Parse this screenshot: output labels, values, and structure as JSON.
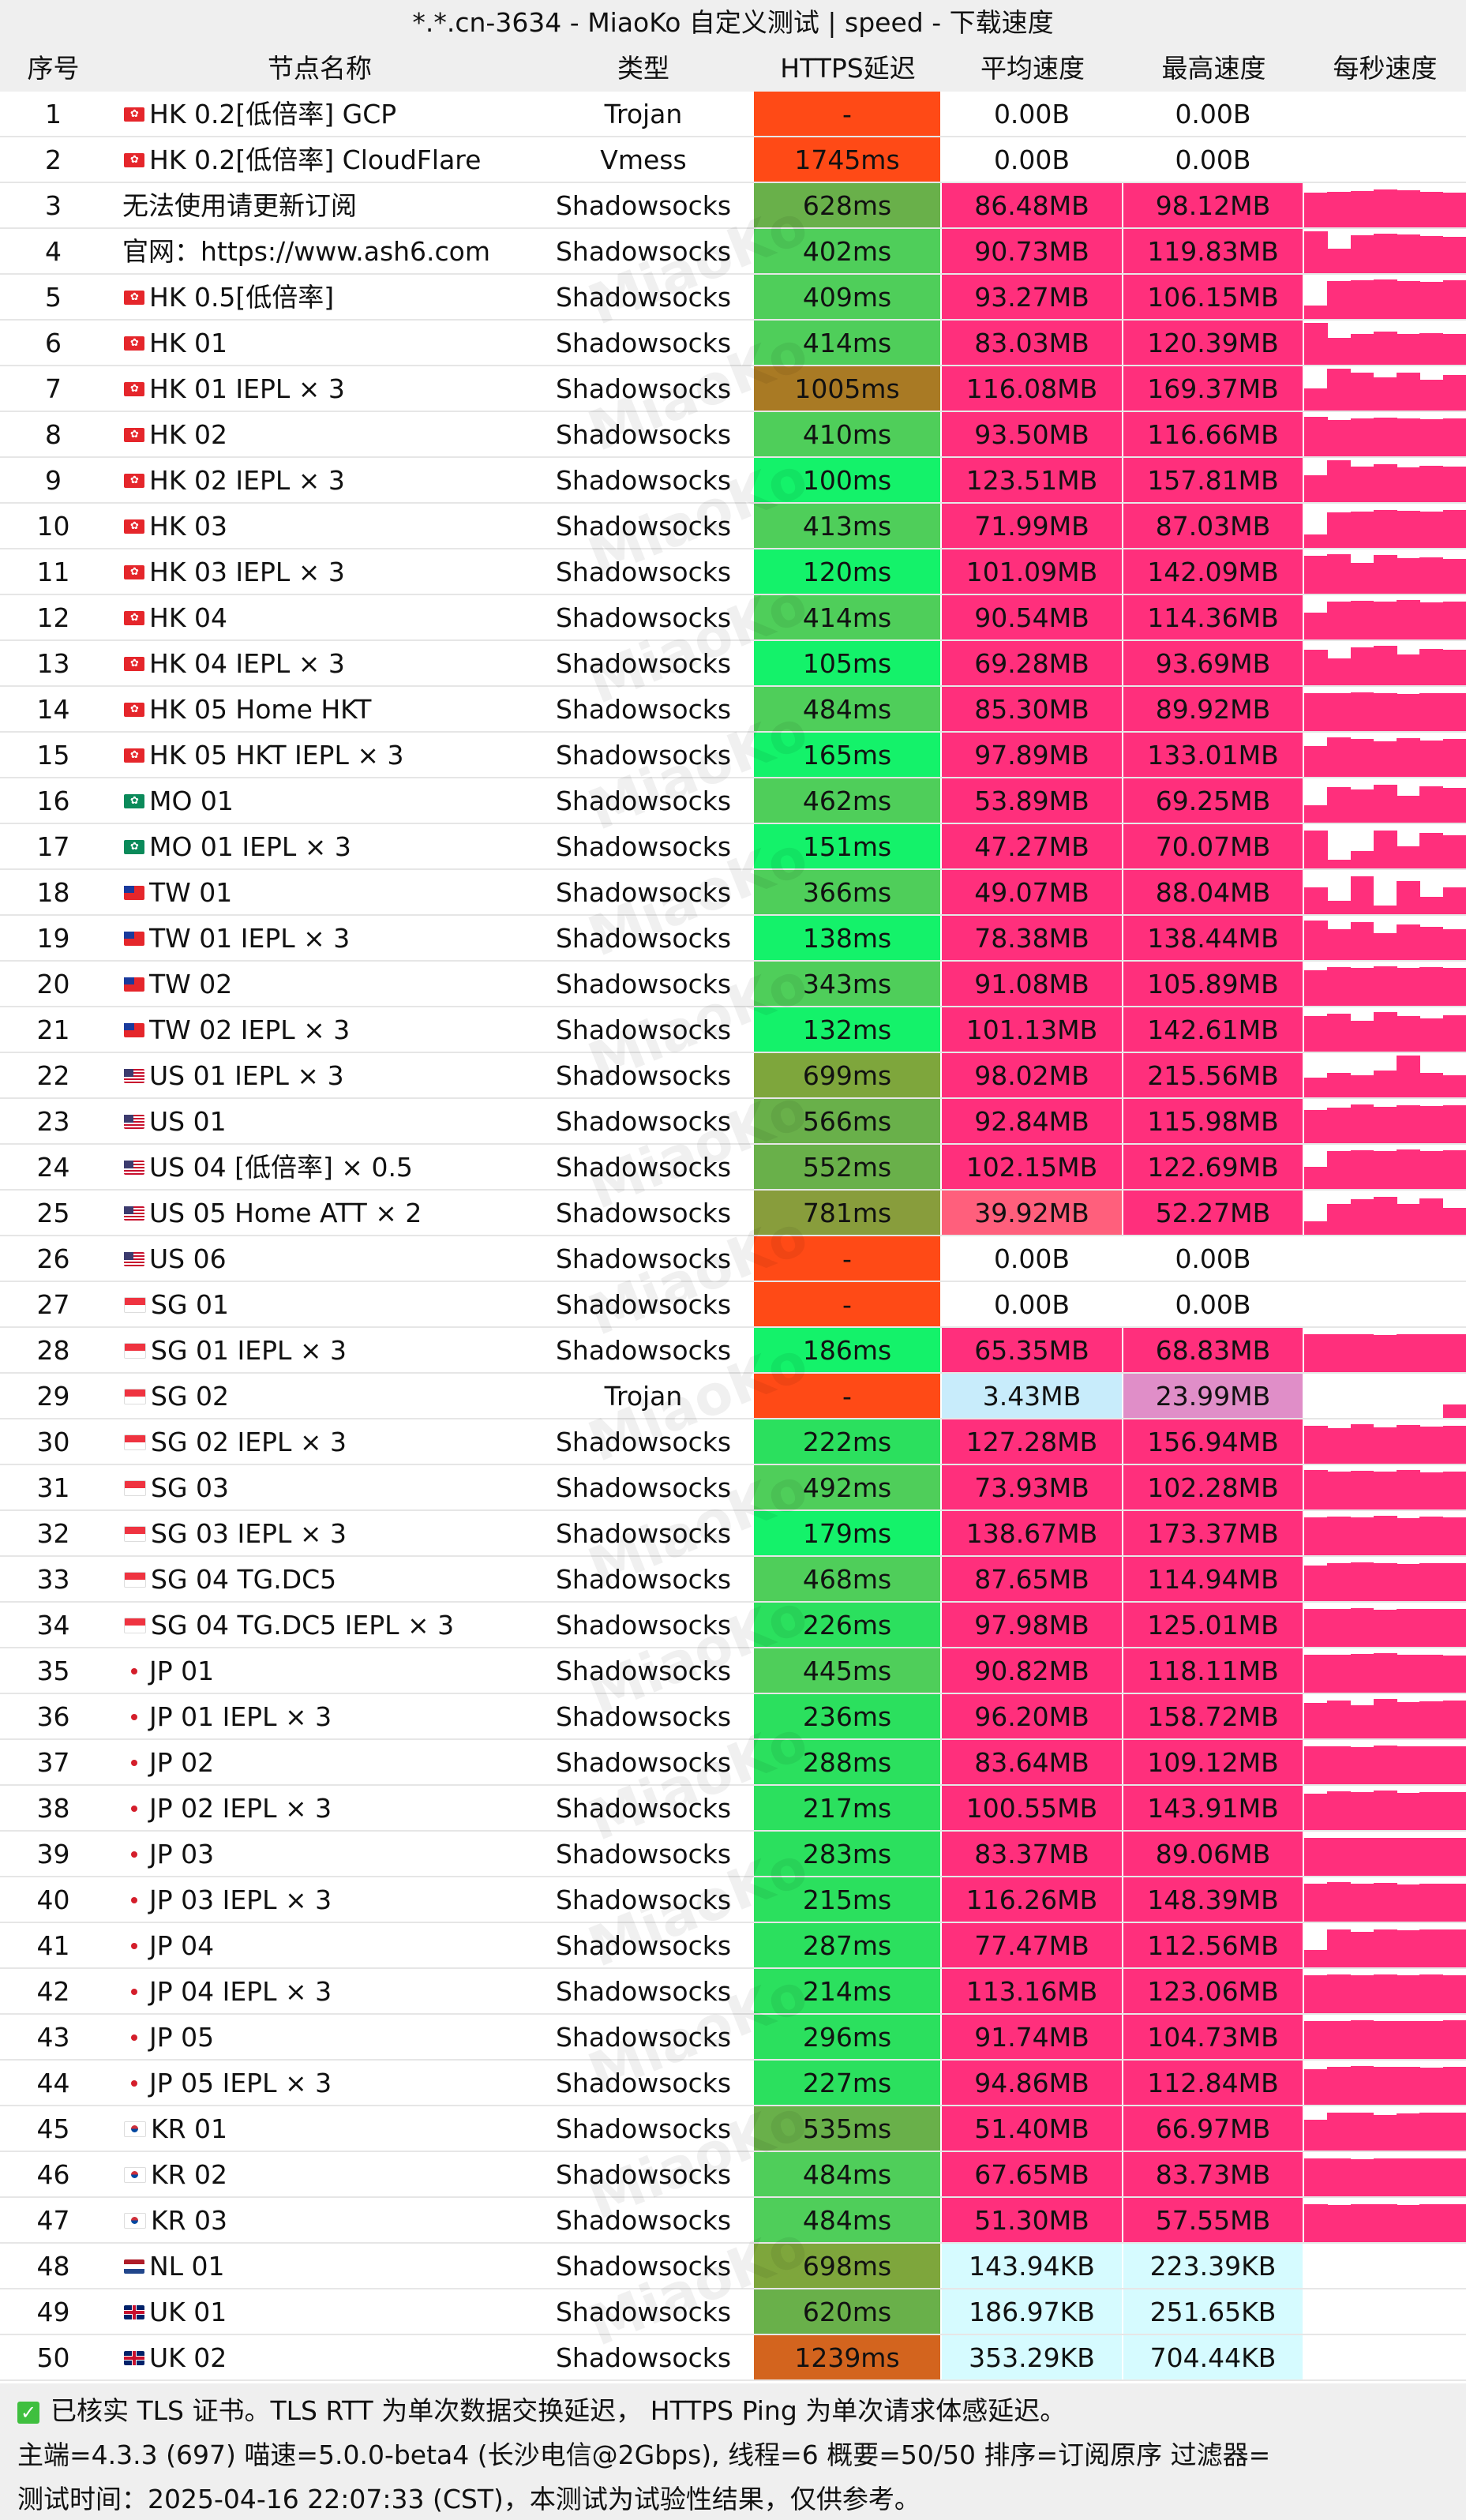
{
  "title": "*.*.cn-3634 - MiaoKo 自定义测试 | speed - 下载速度",
  "watermark": "MiaoKo",
  "columns": [
    "序号",
    "节点名称",
    "类型",
    "HTTPS延迟",
    "平均速度",
    "最高速度",
    "每秒速度"
  ],
  "colors": {
    "speed_high": "#ff2f7c",
    "speed_light_blue": "#c8ecfb",
    "speed_pale_cyan": "#d6fbff",
    "speed_pink_purple": "#e08ec8",
    "speed_salmon": "#ff5f7c",
    "latency_fail": "#ff4a16",
    "latency_none": "#ffffff"
  },
  "rows": [
    {
      "idx": "1",
      "flag": "hk",
      "name": "HK 0.2[低倍率] GCP",
      "type": "Trojan",
      "latency": "-",
      "lat_color": "#ff4a16",
      "avg": "0.00B",
      "max": "0.00B",
      "avg_color": "#ffffff",
      "max_color": "#ffffff",
      "bars": []
    },
    {
      "idx": "2",
      "flag": "hk",
      "name": "HK 0.2[低倍率] CloudFlare",
      "type": "Vmess",
      "latency": "1745ms",
      "lat_color": "#ff4a16",
      "avg": "0.00B",
      "max": "0.00B",
      "avg_color": "#ffffff",
      "max_color": "#ffffff",
      "bars": []
    },
    {
      "idx": "3",
      "flag": "",
      "name": "无法使用请更新订阅",
      "type": "Shadowsocks",
      "latency": "628ms",
      "lat_color": "#69b04a",
      "avg": "86.48MB",
      "max": "98.12MB",
      "avg_color": "#ff2f7c",
      "max_color": "#ff2f7c",
      "bars": [
        0.78,
        0.8,
        0.82,
        0.86,
        0.84,
        0.8,
        0.78
      ]
    },
    {
      "idx": "4",
      "flag": "",
      "name": "官网：https://www.ash6.com",
      "type": "Shadowsocks",
      "latency": "402ms",
      "lat_color": "#4fce5a",
      "avg": "90.73MB",
      "max": "119.83MB",
      "avg_color": "#ff2f7c",
      "max_color": "#ff2f7c",
      "bars": [
        0.95,
        0.55,
        0.85,
        0.9,
        0.88,
        0.84,
        0.82
      ]
    },
    {
      "idx": "5",
      "flag": "hk",
      "name": "HK 0.5[低倍率]",
      "type": "Shadowsocks",
      "latency": "409ms",
      "lat_color": "#4fce5a",
      "avg": "93.27MB",
      "max": "106.15MB",
      "avg_color": "#ff2f7c",
      "max_color": "#ff2f7c",
      "bars": [
        0.3,
        0.85,
        0.88,
        0.9,
        0.86,
        0.84,
        0.88
      ]
    },
    {
      "idx": "6",
      "flag": "hk",
      "name": "HK 01",
      "type": "Shadowsocks",
      "latency": "414ms",
      "lat_color": "#4fce5a",
      "avg": "83.03MB",
      "max": "120.39MB",
      "avg_color": "#ff2f7c",
      "max_color": "#ff2f7c",
      "bars": [
        0.95,
        0.6,
        0.7,
        0.75,
        0.7,
        0.72,
        0.7
      ]
    },
    {
      "idx": "7",
      "flag": "hk",
      "name": "HK 01 IEPL × 3",
      "type": "Shadowsocks",
      "latency": "1005ms",
      "lat_color": "#a97a24",
      "avg": "116.08MB",
      "max": "169.37MB",
      "avg_color": "#ff2f7c",
      "max_color": "#ff2f7c",
      "bars": [
        0.5,
        0.95,
        0.85,
        0.75,
        0.85,
        0.7,
        0.8
      ]
    },
    {
      "idx": "8",
      "flag": "hk",
      "name": "HK 02",
      "type": "Shadowsocks",
      "latency": "410ms",
      "lat_color": "#4fce5a",
      "avg": "93.50MB",
      "max": "116.66MB",
      "avg_color": "#ff2f7c",
      "max_color": "#ff2f7c",
      "bars": [
        0.9,
        0.82,
        0.85,
        0.88,
        0.86,
        0.84,
        0.85
      ]
    },
    {
      "idx": "9",
      "flag": "hk",
      "name": "HK 02 IEPL × 3",
      "type": "Shadowsocks",
      "latency": "100ms",
      "lat_color": "#14f26a",
      "avg": "123.51MB",
      "max": "157.81MB",
      "avg_color": "#ff2f7c",
      "max_color": "#ff2f7c",
      "bars": [
        0.6,
        0.95,
        0.8,
        0.85,
        0.78,
        0.82,
        0.8
      ]
    },
    {
      "idx": "10",
      "flag": "hk",
      "name": "HK 03",
      "type": "Shadowsocks",
      "latency": "413ms",
      "lat_color": "#4fce5a",
      "avg": "71.99MB",
      "max": "87.03MB",
      "avg_color": "#ff2f7c",
      "max_color": "#ff2f7c",
      "bars": [
        0.3,
        0.8,
        0.82,
        0.85,
        0.84,
        0.83,
        0.85
      ]
    },
    {
      "idx": "11",
      "flag": "hk",
      "name": "HK 03 IEPL × 3",
      "type": "Shadowsocks",
      "latency": "120ms",
      "lat_color": "#14f26a",
      "avg": "101.09MB",
      "max": "142.09MB",
      "avg_color": "#ff2f7c",
      "max_color": "#ff2f7c",
      "bars": [
        0.85,
        0.9,
        0.7,
        0.88,
        0.8,
        0.82,
        0.78
      ]
    },
    {
      "idx": "12",
      "flag": "hk",
      "name": "HK 04",
      "type": "Shadowsocks",
      "latency": "414ms",
      "lat_color": "#4fce5a",
      "avg": "90.54MB",
      "max": "114.36MB",
      "avg_color": "#ff2f7c",
      "max_color": "#ff2f7c",
      "bars": [
        0.6,
        0.85,
        0.88,
        0.86,
        0.9,
        0.84,
        0.86
      ]
    },
    {
      "idx": "13",
      "flag": "hk",
      "name": "HK 04 IEPL × 3",
      "type": "Shadowsocks",
      "latency": "105ms",
      "lat_color": "#14f26a",
      "avg": "69.28MB",
      "max": "93.69MB",
      "avg_color": "#ff2f7c",
      "max_color": "#ff2f7c",
      "bars": [
        0.8,
        0.6,
        0.85,
        0.9,
        0.7,
        0.82,
        0.8
      ]
    },
    {
      "idx": "14",
      "flag": "hk",
      "name": "HK 05 Home HKT",
      "type": "Shadowsocks",
      "latency": "484ms",
      "lat_color": "#4fce5a",
      "avg": "85.30MB",
      "max": "89.92MB",
      "avg_color": "#ff2f7c",
      "max_color": "#ff2f7c",
      "bars": [
        0.85,
        0.86,
        0.88,
        0.85,
        0.84,
        0.86,
        0.85
      ]
    },
    {
      "idx": "15",
      "flag": "hk",
      "name": "HK 05 HKT IEPL × 3",
      "type": "Shadowsocks",
      "latency": "165ms",
      "lat_color": "#14f26a",
      "avg": "97.89MB",
      "max": "133.01MB",
      "avg_color": "#ff2f7c",
      "max_color": "#ff2f7c",
      "bars": [
        0.7,
        0.9,
        0.85,
        0.8,
        0.88,
        0.82,
        0.86
      ]
    },
    {
      "idx": "16",
      "flag": "mo",
      "name": "MO 01",
      "type": "Shadowsocks",
      "latency": "462ms",
      "lat_color": "#4fce5a",
      "avg": "53.89MB",
      "max": "69.25MB",
      "avg_color": "#ff2f7c",
      "max_color": "#ff2f7c",
      "bars": [
        0.4,
        0.8,
        0.75,
        0.85,
        0.6,
        0.82,
        0.78
      ]
    },
    {
      "idx": "17",
      "flag": "mo",
      "name": "MO 01 IEPL × 3",
      "type": "Shadowsocks",
      "latency": "151ms",
      "lat_color": "#14f26a",
      "avg": "47.27MB",
      "max": "70.07MB",
      "avg_color": "#ff2f7c",
      "max_color": "#ff2f7c",
      "bars": [
        0.85,
        0.2,
        0.4,
        0.85,
        0.5,
        0.8,
        0.75
      ]
    },
    {
      "idx": "18",
      "flag": "tw",
      "name": "TW 01",
      "type": "Shadowsocks",
      "latency": "366ms",
      "lat_color": "#4fce5a",
      "avg": "49.07MB",
      "max": "88.04MB",
      "avg_color": "#ff2f7c",
      "max_color": "#ff2f7c",
      "bars": [
        0.6,
        0.3,
        0.85,
        0.2,
        0.75,
        0.4,
        0.6
      ]
    },
    {
      "idx": "19",
      "flag": "tw",
      "name": "TW 01 IEPL × 3",
      "type": "Shadowsocks",
      "latency": "138ms",
      "lat_color": "#14f26a",
      "avg": "78.38MB",
      "max": "138.44MB",
      "avg_color": "#ff2f7c",
      "max_color": "#ff2f7c",
      "bars": [
        0.9,
        0.7,
        0.85,
        0.6,
        0.8,
        0.75,
        0.7
      ]
    },
    {
      "idx": "20",
      "flag": "tw",
      "name": "TW 02",
      "type": "Shadowsocks",
      "latency": "343ms",
      "lat_color": "#4fce5a",
      "avg": "91.08MB",
      "max": "105.89MB",
      "avg_color": "#ff2f7c",
      "max_color": "#ff2f7c",
      "bars": [
        0.8,
        0.88,
        0.86,
        0.9,
        0.85,
        0.87,
        0.86
      ]
    },
    {
      "idx": "21",
      "flag": "tw",
      "name": "TW 02 IEPL × 3",
      "type": "Shadowsocks",
      "latency": "132ms",
      "lat_color": "#14f26a",
      "avg": "101.13MB",
      "max": "142.61MB",
      "avg_color": "#ff2f7c",
      "max_color": "#ff2f7c",
      "bars": [
        0.8,
        0.85,
        0.7,
        0.9,
        0.8,
        0.75,
        0.82
      ]
    },
    {
      "idx": "22",
      "flag": "us",
      "name": "US 01 IEPL × 3",
      "type": "Shadowsocks",
      "latency": "699ms",
      "lat_color": "#7ea63c",
      "avg": "98.02MB",
      "max": "215.56MB",
      "avg_color": "#ff2f7c",
      "max_color": "#ff2f7c",
      "bars": [
        0.45,
        0.55,
        0.5,
        0.6,
        0.95,
        0.55,
        0.5
      ]
    },
    {
      "idx": "23",
      "flag": "us",
      "name": "US 01",
      "type": "Shadowsocks",
      "latency": "566ms",
      "lat_color": "#69b04a",
      "avg": "92.84MB",
      "max": "115.98MB",
      "avg_color": "#ff2f7c",
      "max_color": "#ff2f7c",
      "bars": [
        0.75,
        0.8,
        0.88,
        0.82,
        0.86,
        0.84,
        0.85
      ]
    },
    {
      "idx": "24",
      "flag": "us",
      "name": "US 04 [低倍率] × 0.5",
      "type": "Shadowsocks",
      "latency": "552ms",
      "lat_color": "#69b04a",
      "avg": "102.15MB",
      "max": "122.69MB",
      "avg_color": "#ff2f7c",
      "max_color": "#ff2f7c",
      "bars": [
        0.5,
        0.85,
        0.88,
        0.86,
        0.9,
        0.85,
        0.87
      ]
    },
    {
      "idx": "25",
      "flag": "us",
      "name": "US 05 Home ATT × 2",
      "type": "Shadowsocks",
      "latency": "781ms",
      "lat_color": "#889d3c",
      "avg": "39.92MB",
      "max": "52.27MB",
      "avg_color": "#ff5f7c",
      "max_color": "#ff2f7c",
      "bars": [
        0.3,
        0.7,
        0.8,
        0.85,
        0.7,
        0.82,
        0.6
      ]
    },
    {
      "idx": "26",
      "flag": "us",
      "name": "US 06",
      "type": "Shadowsocks",
      "latency": "-",
      "lat_color": "#ff4a16",
      "avg": "0.00B",
      "max": "0.00B",
      "avg_color": "#ffffff",
      "max_color": "#ffffff",
      "bars": []
    },
    {
      "idx": "27",
      "flag": "sg",
      "name": "SG 01",
      "type": "Shadowsocks",
      "latency": "-",
      "lat_color": "#ff4a16",
      "avg": "0.00B",
      "max": "0.00B",
      "avg_color": "#ffffff",
      "max_color": "#ffffff",
      "bars": []
    },
    {
      "idx": "28",
      "flag": "sg",
      "name": "SG 01 IEPL × 3",
      "type": "Shadowsocks",
      "latency": "186ms",
      "lat_color": "#14f26a",
      "avg": "65.35MB",
      "max": "68.83MB",
      "avg_color": "#ff2f7c",
      "max_color": "#ff2f7c",
      "bars": [
        0.85,
        0.86,
        0.85,
        0.84,
        0.86,
        0.85,
        0.86
      ]
    },
    {
      "idx": "29",
      "flag": "sg",
      "name": "SG 02",
      "type": "Trojan",
      "latency": "-",
      "lat_color": "#ff4a16",
      "avg": "3.43MB",
      "max": "23.99MB",
      "avg_color": "#c8ecfb",
      "max_color": "#e08ec8",
      "bars": [
        0,
        0,
        0,
        0,
        0,
        0,
        0.3
      ]
    },
    {
      "idx": "30",
      "flag": "sg",
      "name": "SG 02 IEPL × 3",
      "type": "Shadowsocks",
      "latency": "222ms",
      "lat_color": "#2be05e",
      "avg": "127.28MB",
      "max": "156.94MB",
      "avg_color": "#ff2f7c",
      "max_color": "#ff2f7c",
      "bars": [
        0.85,
        0.8,
        0.9,
        0.82,
        0.88,
        0.84,
        0.86
      ]
    },
    {
      "idx": "31",
      "flag": "sg",
      "name": "SG 03",
      "type": "Shadowsocks",
      "latency": "492ms",
      "lat_color": "#4fce5a",
      "avg": "73.93MB",
      "max": "102.28MB",
      "avg_color": "#ff2f7c",
      "max_color": "#ff2f7c",
      "bars": [
        0.9,
        0.85,
        0.88,
        0.86,
        0.9,
        0.84,
        0.86
      ]
    },
    {
      "idx": "32",
      "flag": "sg",
      "name": "SG 03 IEPL × 3",
      "type": "Shadowsocks",
      "latency": "179ms",
      "lat_color": "#14f26a",
      "avg": "138.67MB",
      "max": "173.37MB",
      "avg_color": "#ff2f7c",
      "max_color": "#ff2f7c",
      "bars": [
        0.85,
        0.88,
        0.86,
        0.9,
        0.84,
        0.88,
        0.86
      ]
    },
    {
      "idx": "33",
      "flag": "sg",
      "name": "SG 04 TG.DC5",
      "type": "Shadowsocks",
      "latency": "468ms",
      "lat_color": "#4fce5a",
      "avg": "87.65MB",
      "max": "114.94MB",
      "avg_color": "#ff2f7c",
      "max_color": "#ff2f7c",
      "bars": [
        0.8,
        0.85,
        0.88,
        0.86,
        0.84,
        0.86,
        0.85
      ]
    },
    {
      "idx": "34",
      "flag": "sg",
      "name": "SG 04 TG.DC5 IEPL × 3",
      "type": "Shadowsocks",
      "latency": "226ms",
      "lat_color": "#2be05e",
      "avg": "97.98MB",
      "max": "125.01MB",
      "avg_color": "#ff2f7c",
      "max_color": "#ff2f7c",
      "bars": [
        0.85,
        0.86,
        0.88,
        0.84,
        0.86,
        0.85,
        0.86
      ]
    },
    {
      "idx": "35",
      "flag": "jp",
      "name": "JP 01",
      "type": "Shadowsocks",
      "latency": "445ms",
      "lat_color": "#4fce5a",
      "avg": "90.82MB",
      "max": "118.11MB",
      "avg_color": "#ff2f7c",
      "max_color": "#ff2f7c",
      "bars": [
        0.85,
        0.86,
        0.88,
        0.9,
        0.86,
        0.85,
        0.84
      ]
    },
    {
      "idx": "36",
      "flag": "jp",
      "name": "JP 01 IEPL × 3",
      "type": "Shadowsocks",
      "latency": "236ms",
      "lat_color": "#2be05e",
      "avg": "96.20MB",
      "max": "158.72MB",
      "avg_color": "#ff2f7c",
      "max_color": "#ff2f7c",
      "bars": [
        0.8,
        0.85,
        0.75,
        0.9,
        0.82,
        0.84,
        0.86
      ]
    },
    {
      "idx": "37",
      "flag": "jp",
      "name": "JP 02",
      "type": "Shadowsocks",
      "latency": "288ms",
      "lat_color": "#2be05e",
      "avg": "83.64MB",
      "max": "109.12MB",
      "avg_color": "#ff2f7c",
      "max_color": "#ff2f7c",
      "bars": [
        0.85,
        0.86,
        0.84,
        0.88,
        0.85,
        0.86,
        0.85
      ]
    },
    {
      "idx": "38",
      "flag": "jp",
      "name": "JP 02 IEPL × 3",
      "type": "Shadowsocks",
      "latency": "217ms",
      "lat_color": "#2be05e",
      "avg": "100.55MB",
      "max": "143.91MB",
      "avg_color": "#ff2f7c",
      "max_color": "#ff2f7c",
      "bars": [
        0.82,
        0.88,
        0.86,
        0.9,
        0.84,
        0.85,
        0.86
      ]
    },
    {
      "idx": "39",
      "flag": "jp",
      "name": "JP 03",
      "type": "Shadowsocks",
      "latency": "283ms",
      "lat_color": "#2be05e",
      "avg": "83.37MB",
      "max": "89.06MB",
      "avg_color": "#ff2f7c",
      "max_color": "#ff2f7c",
      "bars": [
        0.85,
        0.86,
        0.85,
        0.86,
        0.85,
        0.86,
        0.85
      ]
    },
    {
      "idx": "40",
      "flag": "jp",
      "name": "JP 03 IEPL × 3",
      "type": "Shadowsocks",
      "latency": "215ms",
      "lat_color": "#2be05e",
      "avg": "116.26MB",
      "max": "148.39MB",
      "avg_color": "#ff2f7c",
      "max_color": "#ff2f7c",
      "bars": [
        0.85,
        0.9,
        0.86,
        0.88,
        0.84,
        0.86,
        0.85
      ]
    },
    {
      "idx": "41",
      "flag": "jp",
      "name": "JP 04",
      "type": "Shadowsocks",
      "latency": "287ms",
      "lat_color": "#2be05e",
      "avg": "77.47MB",
      "max": "112.56MB",
      "avg_color": "#ff2f7c",
      "max_color": "#ff2f7c",
      "bars": [
        0.4,
        0.85,
        0.8,
        0.86,
        0.84,
        0.85,
        0.86
      ]
    },
    {
      "idx": "42",
      "flag": "jp",
      "name": "JP 04 IEPL × 3",
      "type": "Shadowsocks",
      "latency": "214ms",
      "lat_color": "#2be05e",
      "avg": "113.16MB",
      "max": "123.06MB",
      "avg_color": "#ff2f7c",
      "max_color": "#ff2f7c",
      "bars": [
        0.86,
        0.88,
        0.86,
        0.87,
        0.86,
        0.88,
        0.86
      ]
    },
    {
      "idx": "43",
      "flag": "jp",
      "name": "JP 05",
      "type": "Shadowsocks",
      "latency": "296ms",
      "lat_color": "#2be05e",
      "avg": "91.74MB",
      "max": "104.73MB",
      "avg_color": "#ff2f7c",
      "max_color": "#ff2f7c",
      "bars": [
        0.85,
        0.86,
        0.88,
        0.86,
        0.85,
        0.86,
        0.87
      ]
    },
    {
      "idx": "44",
      "flag": "jp",
      "name": "JP 05 IEPL × 3",
      "type": "Shadowsocks",
      "latency": "227ms",
      "lat_color": "#2be05e",
      "avg": "94.86MB",
      "max": "112.84MB",
      "avg_color": "#ff2f7c",
      "max_color": "#ff2f7c",
      "bars": [
        0.8,
        0.86,
        0.88,
        0.85,
        0.86,
        0.84,
        0.86
      ]
    },
    {
      "idx": "45",
      "flag": "kr",
      "name": "KR 01",
      "type": "Shadowsocks",
      "latency": "535ms",
      "lat_color": "#69b04a",
      "avg": "51.40MB",
      "max": "66.97MB",
      "avg_color": "#ff2f7c",
      "max_color": "#ff2f7c",
      "bars": [
        0.7,
        0.85,
        0.86,
        0.8,
        0.84,
        0.85,
        0.86
      ]
    },
    {
      "idx": "46",
      "flag": "kr",
      "name": "KR 02",
      "type": "Shadowsocks",
      "latency": "484ms",
      "lat_color": "#4fce5a",
      "avg": "67.65MB",
      "max": "83.73MB",
      "avg_color": "#ff2f7c",
      "max_color": "#ff2f7c",
      "bars": [
        0.85,
        0.86,
        0.84,
        0.86,
        0.85,
        0.86,
        0.85
      ]
    },
    {
      "idx": "47",
      "flag": "kr",
      "name": "KR 03",
      "type": "Shadowsocks",
      "latency": "484ms",
      "lat_color": "#4fce5a",
      "avg": "51.30MB",
      "max": "57.55MB",
      "avg_color": "#ff2f7c",
      "max_color": "#ff2f7c",
      "bars": [
        0.85,
        0.84,
        0.86,
        0.85,
        0.84,
        0.86,
        0.85
      ]
    },
    {
      "idx": "48",
      "flag": "nl",
      "name": "NL 01",
      "type": "Shadowsocks",
      "latency": "698ms",
      "lat_color": "#7ea63c",
      "avg": "143.94KB",
      "max": "223.39KB",
      "avg_color": "#d6fbff",
      "max_color": "#d6fbff",
      "bars": []
    },
    {
      "idx": "49",
      "flag": "uk",
      "name": "UK 01",
      "type": "Shadowsocks",
      "latency": "620ms",
      "lat_color": "#69b04a",
      "avg": "186.97KB",
      "max": "251.65KB",
      "avg_color": "#d6fbff",
      "max_color": "#d6fbff",
      "bars": []
    },
    {
      "idx": "50",
      "flag": "uk",
      "name": "UK 02",
      "type": "Shadowsocks",
      "latency": "1239ms",
      "lat_color": "#d3641e",
      "avg": "353.29KB",
      "max": "704.44KB",
      "avg_color": "#d6fbff",
      "max_color": "#d6fbff",
      "bars": []
    }
  ],
  "footer": {
    "check_icon": "checkmark-icon",
    "line1": "已核实 TLS 证书。TLS RTT 为单次数据交换延迟， HTTPS Ping 为单次请求体感延迟。",
    "line2": "主端=4.3.3 (697) 喵速=5.0.0-beta4 (长沙电信@2Gbps), 线程=6 概要=50/50 排序=订阅原序 过滤器=",
    "line3": "测试时间：2025-04-16 22:07:33 (CST)，本测试为试验性结果，仅供参考。"
  }
}
